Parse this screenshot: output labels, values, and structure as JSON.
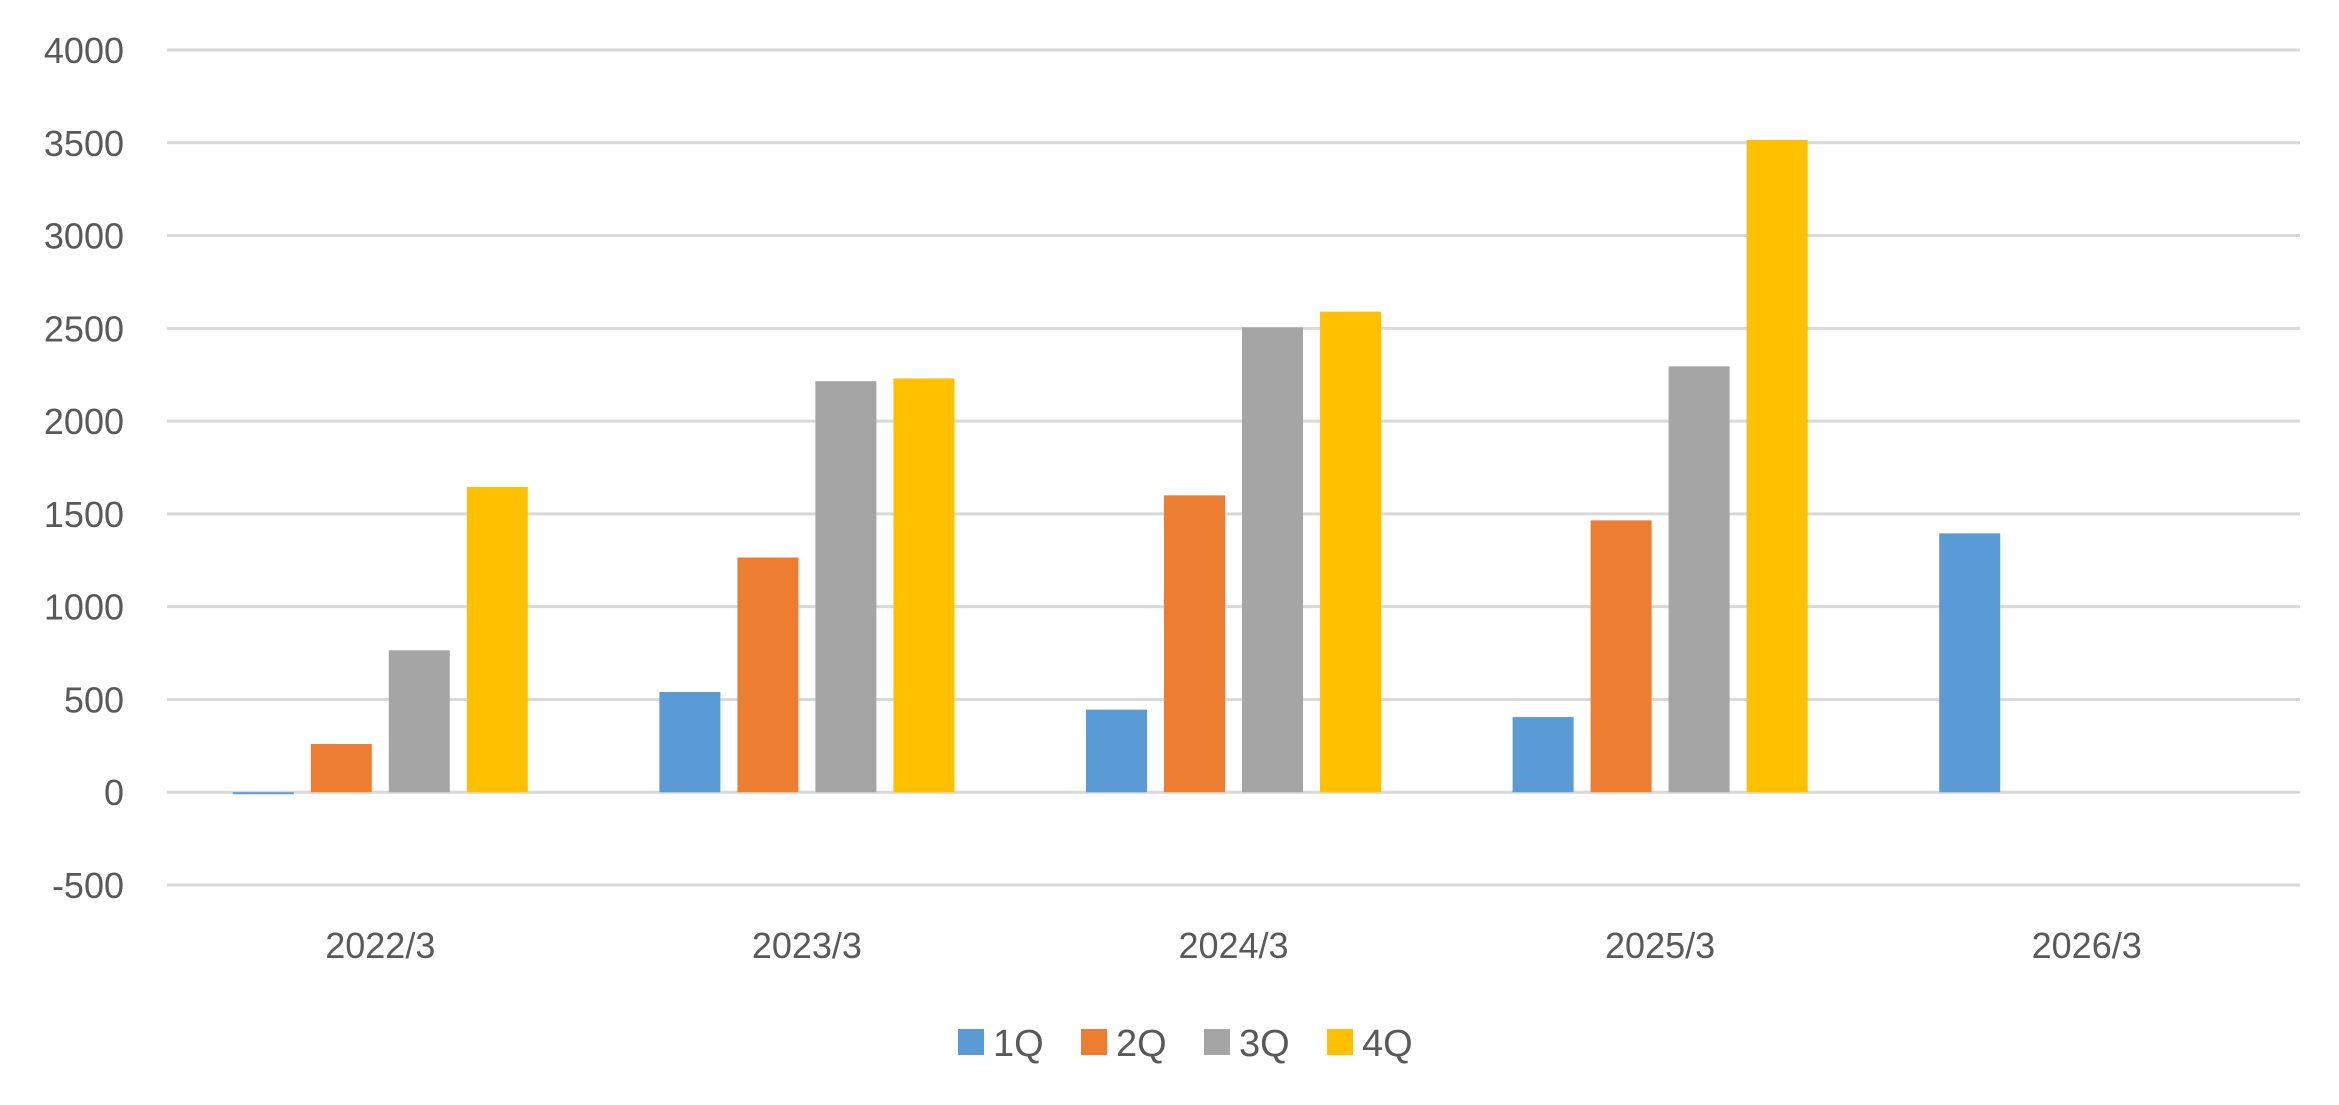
{
  "chart_data": {
    "type": "bar",
    "title": "",
    "xlabel": "",
    "ylabel": "",
    "categories": [
      "2022/3",
      "2023/3",
      "2024/3",
      "2025/3",
      "2026/3"
    ],
    "series": [
      {
        "name": "1Q",
        "color": "#5B9BD5",
        "values": [
          -5,
          540,
          445,
          405,
          1395
        ]
      },
      {
        "name": "2Q",
        "color": "#ED7D31",
        "values": [
          260,
          1265,
          1600,
          1465,
          null
        ]
      },
      {
        "name": "3Q",
        "color": "#A5A5A5",
        "values": [
          765,
          2215,
          2505,
          2295,
          null
        ]
      },
      {
        "name": "4Q",
        "color": "#FFC000",
        "values": [
          1645,
          2230,
          2590,
          3515,
          null
        ]
      }
    ],
    "ylim": [
      -500,
      4000
    ],
    "yticks": [
      -500,
      0,
      500,
      1000,
      1500,
      2000,
      2500,
      3000,
      3500,
      4000
    ],
    "grid": true,
    "legend_position": "bottom"
  }
}
